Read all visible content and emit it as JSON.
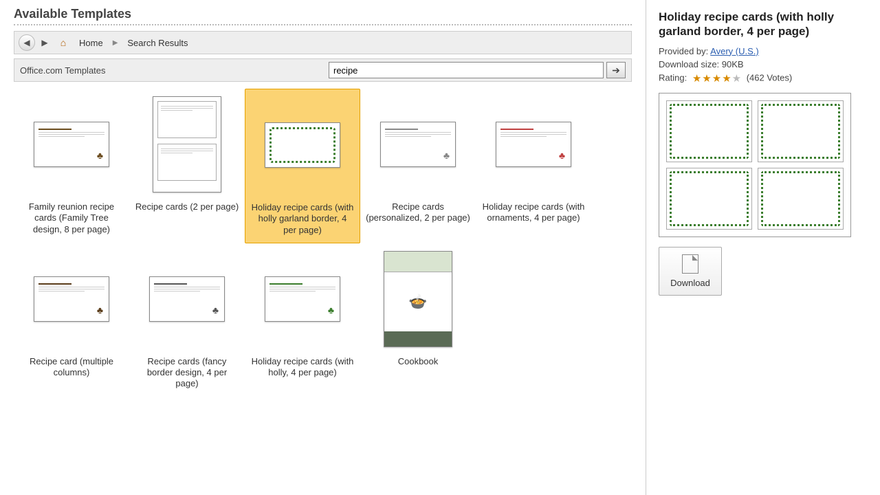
{
  "header": {
    "title": "Available Templates"
  },
  "nav": {
    "home_label": "Home",
    "crumb2": "Search Results"
  },
  "search": {
    "label": "Office.com Templates",
    "value": "recipe"
  },
  "templates": [
    {
      "label": "Family reunion recipe cards (Family Tree design, 8 per page)",
      "style": "card",
      "selected": false,
      "accent": "#6b4c1e"
    },
    {
      "label": "Recipe cards (2 per page)",
      "style": "doc",
      "selected": false,
      "accent": "#888888"
    },
    {
      "label": "Holiday recipe cards (with holly garland border, 4 per page)",
      "style": "card-holly",
      "selected": true,
      "accent": "#3a7d2c"
    },
    {
      "label": "Recipe cards (personalized, 2 per page)",
      "style": "card",
      "selected": false,
      "accent": "#888888"
    },
    {
      "label": "Holiday recipe cards (with ornaments, 4 per page)",
      "style": "card",
      "selected": false,
      "accent": "#c04040"
    },
    {
      "label": "Recipe card (multiple columns)",
      "style": "card",
      "selected": false,
      "accent": "#5a3c1a"
    },
    {
      "label": "Recipe cards (fancy border design, 4 per page)",
      "style": "card",
      "selected": false,
      "accent": "#555555"
    },
    {
      "label": "Holiday recipe cards (with holly, 4 per page)",
      "style": "card",
      "selected": false,
      "accent": "#3a7d2c"
    },
    {
      "label": "Cookbook",
      "style": "book",
      "selected": false,
      "accent": "#5a6b55"
    }
  ],
  "preview": {
    "title": "Holiday recipe cards (with holly garland border, 4 per page)",
    "provided_label": "Provided by:",
    "provider": "Avery (U.S.)",
    "size_label": "Download size:",
    "size_value": "90KB",
    "rating_label": "Rating:",
    "stars_filled": 4,
    "stars_total": 5,
    "votes": "(462 Votes)",
    "download_label": "Download"
  },
  "colors": {
    "selected_bg": "#fbd373",
    "selected_border": "#e6a100",
    "holly": "#3a7d2c"
  }
}
